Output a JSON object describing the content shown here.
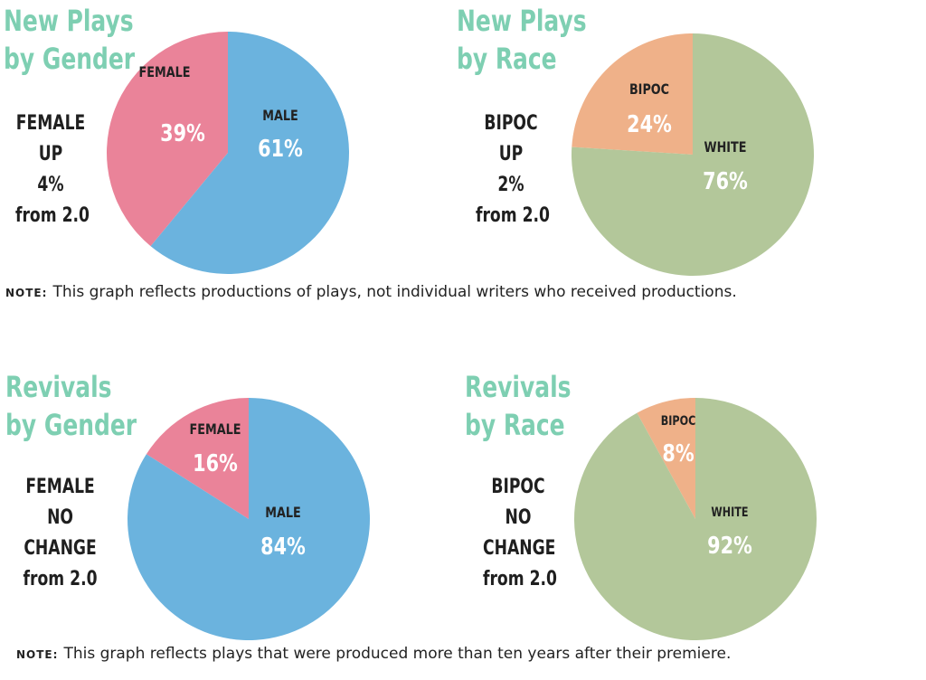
{
  "colors": {
    "title": "#7ecfb2",
    "female": "#ea8399",
    "male": "#6bb3de",
    "bipoc": "#efb189",
    "white_race": "#b3c79a",
    "label_dark": "#222222",
    "label_light": "#ffffff"
  },
  "notes": {
    "new_plays": {
      "tag": "NOTE:",
      "text": "This graph reflects productions of plays, not individual writers who received productions."
    },
    "revivals": {
      "tag": "NOTE:",
      "text": "This graph reflects plays that were produced more than ten years after their premiere."
    }
  },
  "chart_data": [
    {
      "type": "pie",
      "title": {
        "line1": "New Plays",
        "line2": "by Gender"
      },
      "side_note": [
        "FEMALE",
        "UP",
        "4%",
        "from 2.0"
      ],
      "slices": [
        {
          "label": "FEMALE",
          "value": 39,
          "display": "39%",
          "color": "#ea8399"
        },
        {
          "label": "MALE",
          "value": 61,
          "display": "61%",
          "color": "#6bb3de"
        }
      ]
    },
    {
      "type": "pie",
      "title": {
        "line1": "New Plays",
        "line2": "by Race"
      },
      "side_note": [
        "BIPOC",
        "UP",
        "2%",
        "from 2.0"
      ],
      "slices": [
        {
          "label": "BIPOC",
          "value": 24,
          "display": "24%",
          "color": "#efb189"
        },
        {
          "label": "WHITE",
          "value": 76,
          "display": "76%",
          "color": "#b3c79a"
        }
      ]
    },
    {
      "type": "pie",
      "title": {
        "line1": "Revivals",
        "line2": "by Gender"
      },
      "side_note": [
        "FEMALE",
        "NO",
        "CHANGE",
        "from 2.0"
      ],
      "slices": [
        {
          "label": "FEMALE",
          "value": 16,
          "display": "16%",
          "color": "#ea8399"
        },
        {
          "label": "MALE",
          "value": 84,
          "display": "84%",
          "color": "#6bb3de"
        }
      ]
    },
    {
      "type": "pie",
      "title": {
        "line1": "Revivals",
        "line2": "by Race"
      },
      "side_note": [
        "BIPOC",
        "NO",
        "CHANGE",
        "from 2.0"
      ],
      "slices": [
        {
          "label": "BIPOC",
          "value": 8,
          "display": "8%",
          "color": "#efb189"
        },
        {
          "label": "WHITE",
          "value": 92,
          "display": "92%",
          "color": "#b3c79a"
        }
      ]
    }
  ]
}
